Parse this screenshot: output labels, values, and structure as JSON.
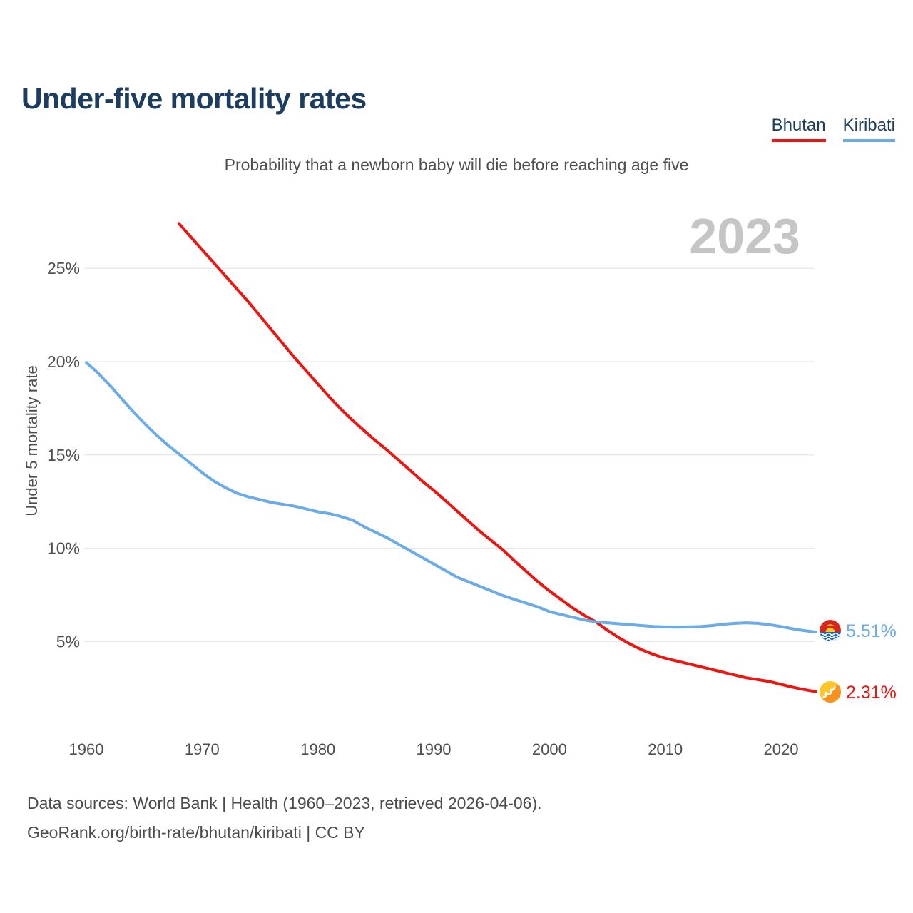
{
  "header": {
    "title": "Under-five mortality rates",
    "subtitle": "Probability that a newborn baby will die before reaching age five"
  },
  "legend": {
    "items": [
      {
        "label": "Bhutan",
        "color": "#ee1410"
      },
      {
        "label": "Kiribati",
        "color": "#6aabe8"
      }
    ]
  },
  "chart": {
    "watermark": "2023"
  },
  "axes": {
    "y_title": "Under 5 mortality rate"
  },
  "footer": {
    "line1": "Data sources: World Bank | Health (1960–2023, retrieved 2026-04-06).",
    "line2": "GeoRank.org/birth-rate/bhutan/kiribati | CC BY"
  },
  "chart_data": {
    "type": "line",
    "title": "Under-five mortality rates",
    "subtitle": "Probability that a newborn baby will die before reaching age five",
    "ylabel": "Under 5 mortality rate",
    "watermark_year": "2023",
    "grid": "horizontal",
    "legend_position": "top-right",
    "x_ticks": [
      1960,
      1970,
      1980,
      1990,
      2000,
      2010,
      2020
    ],
    "y_ticks": [
      {
        "label": "5%",
        "value": 5
      },
      {
        "label": "10%",
        "value": 10
      },
      {
        "label": "15%",
        "value": 15
      },
      {
        "label": "20%",
        "value": 20
      },
      {
        "label": "25%",
        "value": 25
      }
    ],
    "xlim": [
      1958,
      2026
    ],
    "ylim_pct": [
      1.0,
      28.5
    ],
    "series": [
      {
        "name": "Bhutan",
        "color": "#ee1410",
        "end_label": "2.31%",
        "end_value_pct": 2.31,
        "start_year": 1968,
        "end_year": 2023,
        "values_pct": [
          27.4,
          26.7,
          26.0,
          25.3,
          24.6,
          23.9,
          23.2,
          22.45,
          21.7,
          20.95,
          20.2,
          19.5,
          18.8,
          18.1,
          17.45,
          16.85,
          16.3,
          15.75,
          15.25,
          14.7,
          14.15,
          13.6,
          13.1,
          12.55,
          12.0,
          11.45,
          10.9,
          10.4,
          9.9,
          9.3,
          8.75,
          8.2,
          7.7,
          7.25,
          6.8,
          6.4,
          6.05,
          5.6,
          5.2,
          4.85,
          4.55,
          4.3,
          4.1,
          3.95,
          3.8,
          3.65,
          3.5,
          3.35,
          3.2,
          3.05,
          2.95,
          2.85,
          2.7,
          2.55,
          2.42,
          2.31
        ]
      },
      {
        "name": "Kiribati",
        "color": "#6aabe8",
        "end_label": "5.51%",
        "end_value_pct": 5.51,
        "start_year": 1960,
        "end_year": 2023,
        "values_pct": [
          19.95,
          19.4,
          18.75,
          18.05,
          17.35,
          16.7,
          16.1,
          15.55,
          15.05,
          14.55,
          14.05,
          13.6,
          13.25,
          12.95,
          12.75,
          12.6,
          12.45,
          12.35,
          12.25,
          12.1,
          11.95,
          11.85,
          11.7,
          11.5,
          11.15,
          10.85,
          10.55,
          10.2,
          9.85,
          9.5,
          9.15,
          8.8,
          8.45,
          8.2,
          7.95,
          7.7,
          7.45,
          7.25,
          7.05,
          6.85,
          6.6,
          6.45,
          6.3,
          6.15,
          6.05,
          6.0,
          5.95,
          5.9,
          5.85,
          5.8,
          5.78,
          5.77,
          5.78,
          5.8,
          5.85,
          5.92,
          5.97,
          6.0,
          5.97,
          5.9,
          5.8,
          5.68,
          5.58,
          5.51
        ]
      }
    ]
  }
}
